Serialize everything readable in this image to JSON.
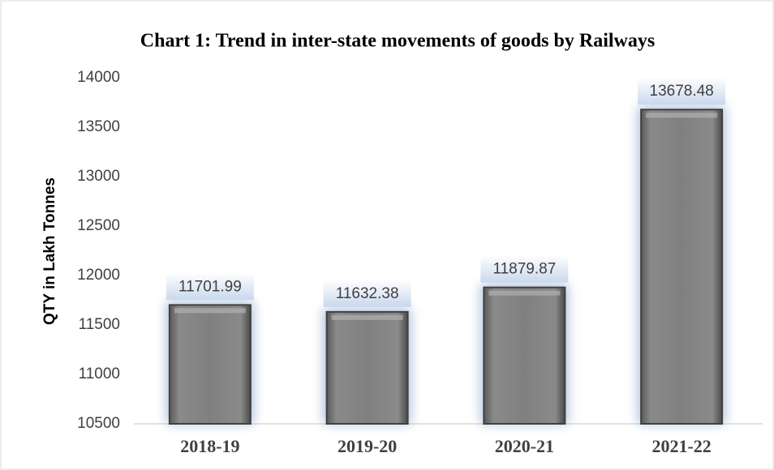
{
  "chart_data": {
    "type": "bar",
    "title": "Chart 1: Trend in inter-state movements of goods by Railways",
    "y_label": "QTY in Lakh Tonnes",
    "categories": [
      "2018-19",
      "2019-20",
      "2020-21",
      "2021-22"
    ],
    "values": [
      11701.99,
      11632.38,
      11879.87,
      13678.48
    ],
    "color": "#7f7f7f",
    "ylim": [
      10500,
      14000
    ],
    "yticks": [
      10500,
      11000,
      11500,
      12000,
      12500,
      13000,
      13500,
      14000
    ],
    "grid": false
  }
}
